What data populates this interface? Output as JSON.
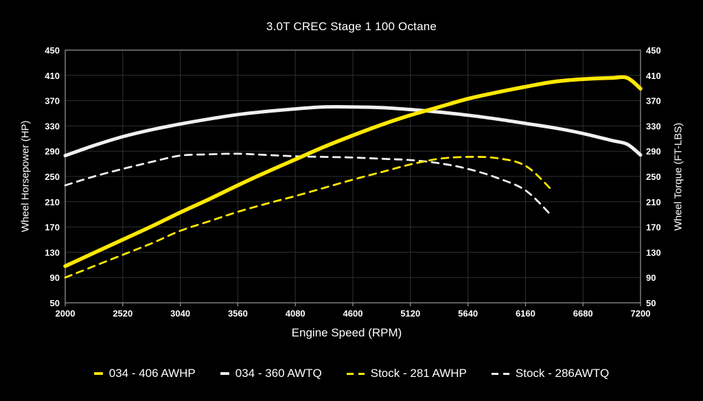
{
  "title": "3.0T CREC Stage 1 100 Octane",
  "chart_data": {
    "type": "line",
    "title": "3.0T CREC Stage 1 100 Octane",
    "xlabel": "Engine Speed (RPM)",
    "ylabel_left": "Wheel Horsepower (HP)",
    "ylabel_right": "Wheel Torque (FT-LBS)",
    "xlim": [
      2000,
      7200
    ],
    "ylim": [
      50,
      450
    ],
    "x_ticks": [
      2000,
      2520,
      3040,
      3560,
      4080,
      4600,
      5120,
      5640,
      6160,
      6680,
      7200
    ],
    "y_ticks": [
      50,
      90,
      130,
      170,
      210,
      250,
      290,
      330,
      370,
      410,
      450
    ],
    "grid": true,
    "legend_position": "bottom",
    "background": "#000000",
    "colors": {
      "grid": "#303030",
      "spine": "#909090",
      "text": "#ffffff",
      "yellow": "#ffe800",
      "white_line": "#f0f0f0"
    },
    "series": [
      {
        "name": "034 - 406 AWHP",
        "axis": "left",
        "color": "#ffe800",
        "style": "solid",
        "width": 5.5,
        "x": [
          2000,
          2260,
          2520,
          2780,
          3040,
          3300,
          3560,
          3820,
          4080,
          4340,
          4600,
          4860,
          5120,
          5380,
          5640,
          5900,
          6160,
          6420,
          6680,
          6940,
          7080,
          7200
        ],
        "y": [
          108,
          129,
          150,
          171,
          193,
          214,
          236,
          257,
          277,
          297,
          315,
          332,
          347,
          360,
          373,
          383,
          392,
          400,
          404,
          406,
          406,
          389
        ]
      },
      {
        "name": "034 - 360 AWTQ",
        "axis": "right",
        "color": "#f0f0f0",
        "style": "solid",
        "width": 5,
        "x": [
          2000,
          2260,
          2520,
          2780,
          3040,
          3300,
          3560,
          3820,
          4080,
          4340,
          4600,
          4860,
          5120,
          5380,
          5640,
          5900,
          6160,
          6420,
          6680,
          6940,
          7080,
          7200
        ],
        "y": [
          283,
          299,
          313,
          324,
          333,
          341,
          348,
          353,
          357,
          360,
          360,
          359,
          356,
          352,
          347,
          341,
          334,
          327,
          318,
          307,
          301,
          284
        ]
      },
      {
        "name": "Stock - 281 AWHP",
        "axis": "left",
        "color": "#ffe800",
        "style": "dashed",
        "width": 2.8,
        "x": [
          2000,
          2260,
          2520,
          2780,
          3040,
          3300,
          3560,
          3820,
          4080,
          4340,
          4600,
          4860,
          5120,
          5380,
          5640,
          5900,
          6160,
          6390
        ],
        "y": [
          90,
          108,
          126,
          144,
          164,
          179,
          194,
          207,
          219,
          232,
          245,
          257,
          269,
          278,
          281,
          279,
          267,
          230
        ]
      },
      {
        "name": "Stock - 286AWTQ",
        "axis": "right",
        "color": "#f0f0f0",
        "style": "dashed",
        "width": 2.8,
        "x": [
          2000,
          2260,
          2520,
          2780,
          3040,
          3300,
          3560,
          3820,
          4080,
          4340,
          4600,
          4860,
          5120,
          5380,
          5640,
          5900,
          6160,
          6390
        ],
        "y": [
          236,
          250,
          262,
          273,
          283,
          285,
          286,
          284,
          282,
          281,
          280,
          278,
          276,
          271,
          262,
          248,
          228,
          189
        ]
      }
    ]
  }
}
